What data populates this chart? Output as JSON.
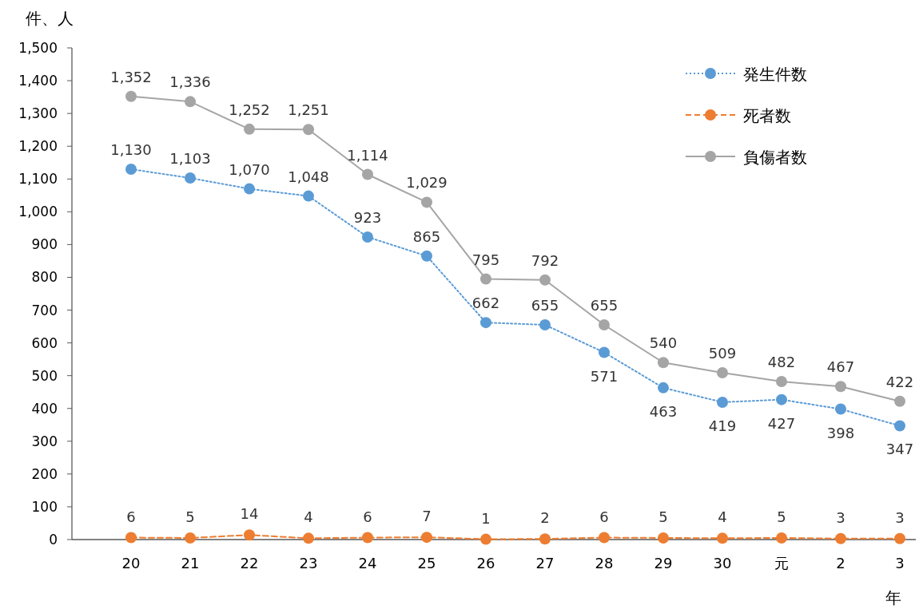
{
  "chart_data": {
    "type": "line",
    "xlabel": "年",
    "ylabel": "件、人",
    "categories": [
      "20",
      "21",
      "22",
      "23",
      "24",
      "25",
      "26",
      "27",
      "28",
      "29",
      "30",
      "元",
      "2",
      "3"
    ],
    "ylim": [
      0,
      1500
    ],
    "yticks": [
      0,
      100,
      200,
      300,
      400,
      500,
      600,
      700,
      800,
      900,
      {
        "value": 1000,
        "label": "1,000"
      },
      {
        "value": 1100,
        "label": "1,100"
      },
      {
        "value": 1200,
        "label": "1,200"
      },
      {
        "value": 1300,
        "label": "1,300"
      },
      {
        "value": 1400,
        "label": "1,400"
      },
      {
        "value": 1500,
        "label": "1,500"
      }
    ],
    "series": [
      {
        "name": "発生件数",
        "color": "#5b9bd5",
        "line_style": "dotted",
        "values": [
          1130,
          1103,
          1070,
          1048,
          923,
          865,
          662,
          655,
          571,
          463,
          419,
          427,
          398,
          347
        ],
        "value_labels": [
          "1,130",
          "1,103",
          "1,070",
          "1,048",
          "923",
          "865",
          "662",
          "655",
          "571",
          "463",
          "419",
          "427",
          "398",
          "347"
        ]
      },
      {
        "name": "死者数",
        "color": "#ed7d31",
        "line_style": "dashed",
        "values": [
          6,
          5,
          14,
          4,
          6,
          7,
          1,
          2,
          6,
          5,
          4,
          5,
          3,
          3
        ],
        "value_labels": [
          "6",
          "5",
          "14",
          "4",
          "6",
          "7",
          "1",
          "2",
          "6",
          "5",
          "4",
          "5",
          "3",
          "3"
        ]
      },
      {
        "name": "負傷者数",
        "color": "#a5a5a5",
        "line_style": "solid",
        "values": [
          1352,
          1336,
          1252,
          1251,
          1114,
          1029,
          795,
          792,
          655,
          540,
          509,
          482,
          467,
          422
        ],
        "value_labels": [
          "1,352",
          "1,336",
          "1,252",
          "1,251",
          "1,114",
          "1,029",
          "795",
          "792",
          "655",
          "540",
          "509",
          "482",
          "467",
          "422"
        ]
      }
    ],
    "marker": "circle",
    "grid": false,
    "legend": "top right"
  }
}
